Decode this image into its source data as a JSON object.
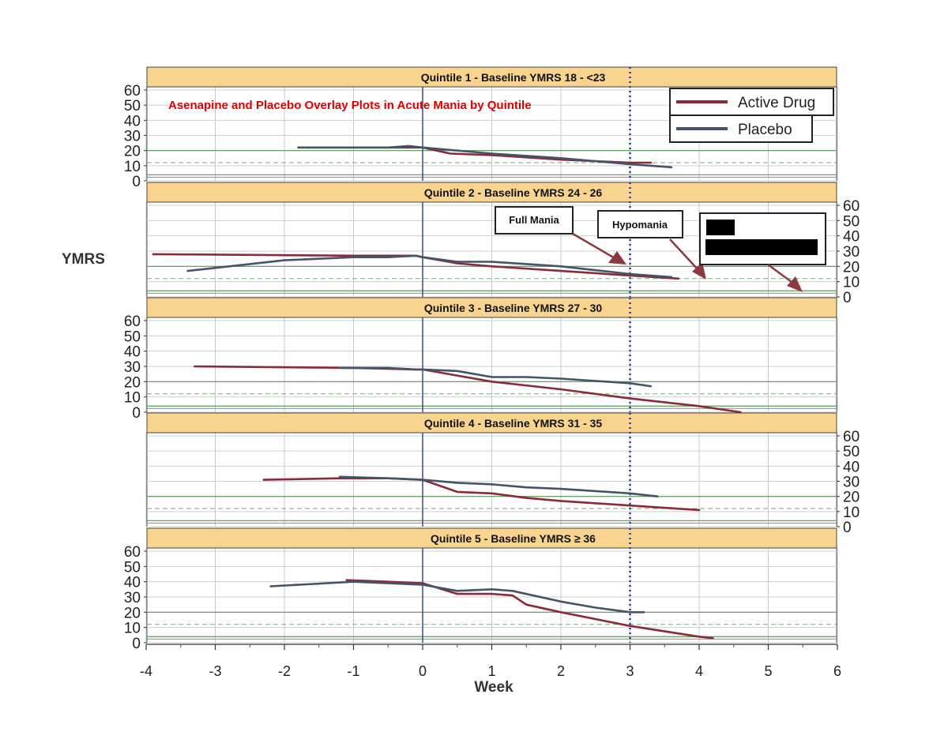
{
  "chart_data": {
    "type": "line",
    "title": "Asenapine and Placebo Overlay Plots in Acute Mania by Quintile",
    "xlabel": "Week",
    "ylabel": "YMRS",
    "xlim": [
      -4,
      6
    ],
    "ylim": [
      0,
      60
    ],
    "x_ticks": [
      -4,
      -3,
      -2,
      -1,
      0,
      1,
      2,
      3,
      4,
      5,
      6
    ],
    "y_ticks": [
      0,
      10,
      20,
      30,
      40,
      50,
      60
    ],
    "reference_lines_x": [
      0,
      3
    ],
    "reference_lines_y": [
      20,
      12,
      4
    ],
    "grid": true,
    "legend": {
      "placement": "top-right",
      "entries": [
        {
          "label": "Active Drug",
          "color": "#8b2a3a"
        },
        {
          "label": "Placebo",
          "color": "#44546a"
        }
      ]
    },
    "annotations": [
      {
        "label": "Full Mania"
      },
      {
        "label": "Hypomania"
      }
    ],
    "panels": [
      {
        "title": "Quintile 1 - Baseline YMRS 18 - <23",
        "series": [
          {
            "name": "Active Drug",
            "x": [
              -1.7,
              -0.2,
              0.0,
              0.4,
              1.0,
              2.0,
              3.0,
              3.3
            ],
            "y": [
              22,
              22,
              22,
              18,
              17,
              14,
              12,
              12
            ]
          },
          {
            "name": "Placebo",
            "x": [
              -1.8,
              -0.5,
              -0.2,
              0.0,
              1.0,
              2.0,
              3.0,
              3.6
            ],
            "y": [
              22,
              22,
              23,
              22,
              18,
              15,
              11,
              9
            ]
          }
        ]
      },
      {
        "title": "Quintile 2 - Baseline YMRS 24 - 26",
        "series": [
          {
            "name": "Active Drug",
            "x": [
              -3.9,
              -1.0,
              -0.1,
              0.0,
              0.5,
              1.0,
              2.0,
              3.0,
              3.7
            ],
            "y": [
              28,
              27,
              27,
              26,
              22,
              20,
              17,
              14,
              12
            ]
          },
          {
            "name": "Placebo",
            "x": [
              -3.4,
              -2.0,
              -1.0,
              -0.5,
              -0.1,
              0.0,
              0.5,
              1.0,
              2.0,
              3.0,
              3.6
            ],
            "y": [
              17,
              24,
              26,
              26,
              27,
              26,
              23,
              23,
              20,
              15,
              13
            ]
          }
        ]
      },
      {
        "title": "Quintile 3 - Baseline YMRS 27 -  30",
        "series": [
          {
            "name": "Active Drug",
            "x": [
              -3.3,
              -1.0,
              -0.1,
              0.0,
              0.5,
              1.0,
              2.0,
              3.0,
              4.0,
              4.6
            ],
            "y": [
              30,
              29,
              28,
              28,
              24,
              20,
              15,
              9,
              4,
              0
            ]
          },
          {
            "name": "Placebo",
            "x": [
              -1.2,
              -0.5,
              -0.1,
              0.0,
              0.5,
              1.0,
              1.5,
              2.0,
              3.0,
              3.3
            ],
            "y": [
              29,
              29,
              28,
              28,
              27,
              23,
              23,
              22,
              19,
              17
            ]
          }
        ]
      },
      {
        "title": "Quintile 4 - Baseline YMRS 31 - 35",
        "series": [
          {
            "name": "Active Drug",
            "x": [
              -2.3,
              -1.2,
              -0.5,
              0.0,
              0.5,
              1.0,
              1.5,
              2.0,
              3.0,
              4.0
            ],
            "y": [
              31,
              32,
              32,
              31,
              23,
              22,
              19,
              17,
              14,
              11
            ]
          },
          {
            "name": "Placebo",
            "x": [
              -1.2,
              -0.5,
              0.0,
              0.5,
              1.0,
              1.5,
              2.0,
              3.0,
              3.4
            ],
            "y": [
              33,
              32,
              31,
              29,
              28,
              26,
              25,
              22,
              20
            ]
          }
        ]
      },
      {
        "title": "Quintile 5 - Baseline YMRS ≥ 36",
        "series": [
          {
            "name": "Active Drug",
            "x": [
              -1.1,
              -0.5,
              0.0,
              0.5,
              1.0,
              1.3,
              1.5,
              2.0,
              3.0,
              4.0,
              4.2
            ],
            "y": [
              41,
              40,
              39,
              32,
              32,
              31,
              25,
              20,
              11,
              4,
              3
            ]
          },
          {
            "name": "Placebo",
            "x": [
              -2.2,
              -1.0,
              0.0,
              0.5,
              1.0,
              1.3,
              2.0,
              2.5,
              3.0,
              3.2
            ],
            "y": [
              37,
              40,
              38,
              34,
              35,
              34,
              27,
              23,
              20,
              20
            ]
          }
        ]
      }
    ]
  }
}
